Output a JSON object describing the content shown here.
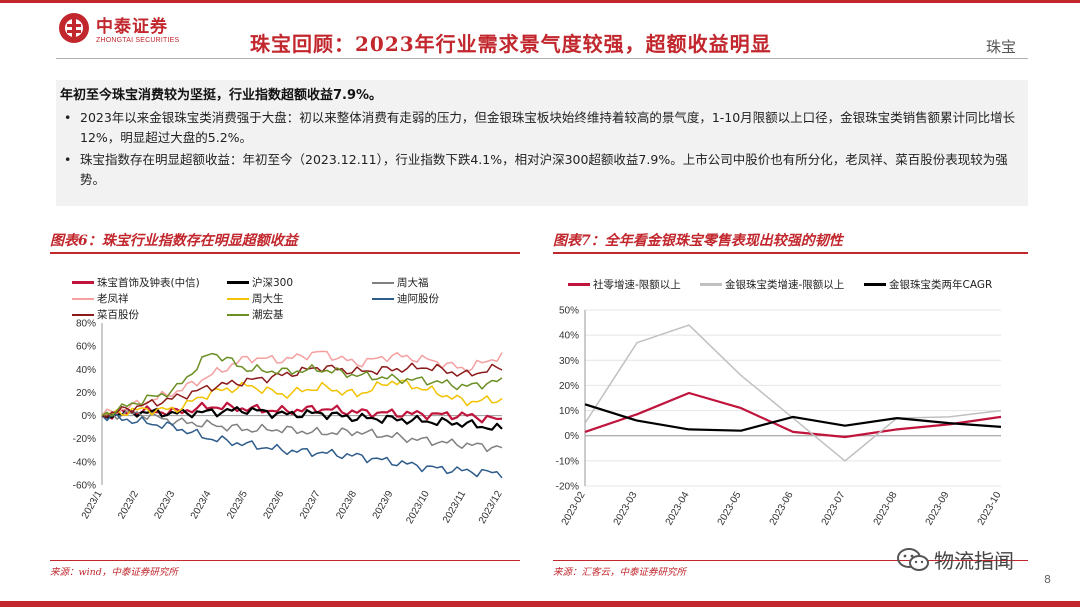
{
  "header": {
    "logo_cn": "中泰证券",
    "logo_en": "ZHONGTAI SECURITIES",
    "title": "珠宝回顾：2023年行业需求景气度较强，超额收益明显",
    "section": "珠宝"
  },
  "summary": {
    "lead": "年初至今珠宝消费较为坚挺，行业指数超额收益7.9%。",
    "bullets": [
      "2023年以来金银珠宝类消费强于大盘：初以来整体消费有走弱的压力，但金银珠宝板块始终维持着较高的景气度，1-10月限额以上口径，金银珠宝类销售额累计同比增长12%，明显超过大盘的5.2%。",
      "珠宝指数存在明显超额收益：年初至今（2023.12.11），行业指数下跌4.1%，相对沪深300超额收益7.9%。上市公司中股价也有所分化，老凤祥、菜百股份表现较为强势。"
    ],
    "bullet_symbol": "•"
  },
  "figure6": {
    "title": "图表6：珠宝行业指数存在明显超额收益",
    "source": "来源：wind，中泰证券研究所"
  },
  "figure7": {
    "title": "图表7：全年看金银珠宝零售表现出较强的韧性",
    "source": "来源：汇客云，中泰证券研究所"
  },
  "footer": {
    "watermark": "物流指闻",
    "page_number": "8"
  },
  "chart_data": [
    {
      "type": "line",
      "title": "图表6：珠宝行业指数存在明显超额收益",
      "x_labels": [
        "2023/1",
        "2023/2",
        "2023/3",
        "2023/4",
        "2023/5",
        "2023/6",
        "2023/7",
        "2023/8",
        "2023/9",
        "2023/10",
        "2023/11",
        "2023/12"
      ],
      "y_ticks": [
        "80%",
        "60%",
        "40%",
        "20%",
        "0%",
        "-20%",
        "-40%",
        "-60%"
      ],
      "ylim": [
        -60,
        80
      ],
      "series": [
        {
          "name": "珠宝首饰及钟表(中信)",
          "color": "#c0143c",
          "values": [
            0,
            4,
            3,
            8,
            6,
            4,
            6,
            3,
            2,
            1,
            0,
            -4
          ]
        },
        {
          "name": "沪深300",
          "color": "#000000",
          "values": [
            0,
            3,
            2,
            3,
            5,
            1,
            2,
            -2,
            -3,
            -5,
            -7,
            -12
          ]
        },
        {
          "name": "周大福",
          "color": "#808080",
          "values": [
            0,
            2,
            -5,
            -8,
            -12,
            -12,
            -15,
            -14,
            -18,
            -22,
            -25,
            -28
          ]
        },
        {
          "name": "老凤祥",
          "color": "#f4a0a0",
          "values": [
            0,
            10,
            20,
            35,
            50,
            48,
            55,
            45,
            52,
            48,
            40,
            52
          ]
        },
        {
          "name": "周大生",
          "color": "#f2c200",
          "values": [
            0,
            5,
            5,
            20,
            26,
            18,
            25,
            18,
            30,
            22,
            12,
            14
          ]
        },
        {
          "name": "迪阿股份",
          "color": "#2e5c8a",
          "values": [
            0,
            -5,
            -10,
            -20,
            -25,
            -30,
            -32,
            -35,
            -40,
            -45,
            -48,
            -50
          ]
        },
        {
          "name": "菜百股份",
          "color": "#8b1a1a",
          "values": [
            0,
            8,
            15,
            25,
            30,
            35,
            42,
            38,
            40,
            42,
            35,
            42
          ]
        },
        {
          "name": "潮宏基",
          "color": "#6b8e23",
          "values": [
            0,
            12,
            22,
            55,
            40,
            38,
            40,
            35,
            32,
            30,
            25,
            30
          ]
        }
      ]
    },
    {
      "type": "line",
      "title": "图表7：全年看金银珠宝零售表现出较强的韧性",
      "x_labels": [
        "2023-02",
        "2023-03",
        "2023-04",
        "2023-05",
        "2023-06",
        "2023-07",
        "2023-08",
        "2023-09",
        "2023-10"
      ],
      "y_ticks": [
        "50%",
        "40%",
        "30%",
        "20%",
        "10%",
        "0%",
        "-10%",
        "-20%"
      ],
      "ylim": [
        -20,
        50
      ],
      "series": [
        {
          "name": "社零增速-限额以上",
          "color": "#c0143c",
          "values": [
            1.5,
            8.5,
            17,
            11,
            1.5,
            -0.5,
            2.5,
            4.5,
            7.5
          ]
        },
        {
          "name": "金银珠宝类增速-限额以上",
          "color": "#c0c0c0",
          "values": [
            5,
            37,
            44,
            24,
            7,
            -10,
            7,
            7.5,
            10
          ]
        },
        {
          "name": "金银珠宝类两年CAGR",
          "color": "#000000",
          "values": [
            12.5,
            6,
            2.5,
            2,
            7.5,
            4,
            7,
            5,
            3.5
          ]
        }
      ]
    }
  ]
}
